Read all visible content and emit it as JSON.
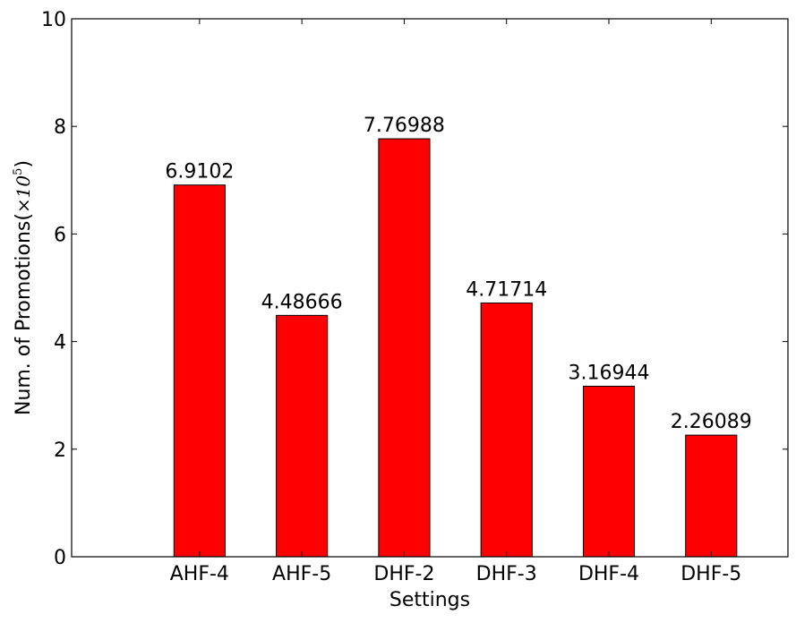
{
  "chart_data": {
    "type": "bar",
    "title": "",
    "xlabel": "Settings",
    "ylabel": "Num. of Promotions(",
    "ylabel_factor": "×10",
    "ylabel_exponent": "5",
    "ylabel_close": ")",
    "categories": [
      "AHF-4",
      "AHF-5",
      "DHF-2",
      "DHF-3",
      "DHF-4",
      "DHF-5"
    ],
    "values": [
      6.9102,
      4.48666,
      7.76988,
      4.71714,
      3.16944,
      2.26089
    ],
    "value_labels": [
      "6.9102",
      "4.48666",
      "7.76988",
      "4.71714",
      "3.16944",
      "2.26089"
    ],
    "ylim": [
      0,
      10
    ],
    "yticks": [
      0,
      2,
      4,
      6,
      8,
      10
    ],
    "grid": false,
    "bar_color": "#ff0000",
    "bar_edge_color": "#000000"
  }
}
